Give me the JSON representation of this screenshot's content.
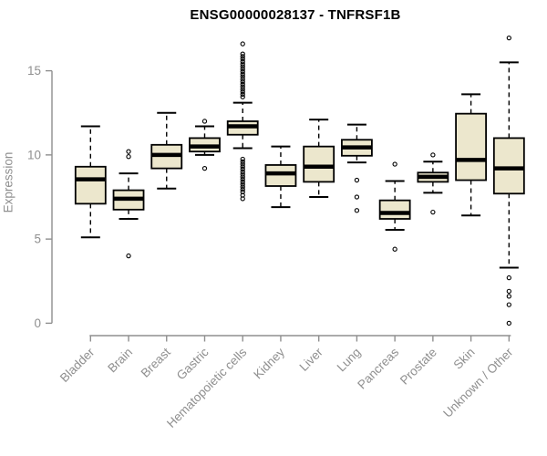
{
  "chart_data": {
    "type": "boxplot",
    "title": "ENSG00000028137 - TNFRSF1B",
    "ylabel": "Expression",
    "xlabel": "",
    "ylim": [
      0,
      15
    ],
    "yticks": [
      0,
      5,
      10,
      15
    ],
    "grid": false,
    "legend": "none",
    "colors": {
      "box_fill": "#ECE7CD",
      "box_stroke": "#000000",
      "axis": "#8f8f8f",
      "tick_label": "#8f8f8f",
      "title": "#000000"
    },
    "categories": [
      "Bladder",
      "Brain",
      "Breast",
      "Gastric",
      "Hematopoietic cells",
      "Kidney",
      "Liver",
      "Lung",
      "Pancreas",
      "Prostate",
      "Skin",
      "Unknown / Other"
    ],
    "series": [
      {
        "name": "Bladder",
        "whisker_low": 5.1,
        "q1": 7.1,
        "median": 8.55,
        "q3": 9.3,
        "whisker_high": 11.7,
        "outliers": []
      },
      {
        "name": "Brain",
        "whisker_low": 6.2,
        "q1": 6.75,
        "median": 7.4,
        "q3": 7.9,
        "whisker_high": 8.9,
        "outliers": [
          10.2,
          9.9,
          4.0
        ]
      },
      {
        "name": "Breast",
        "whisker_low": 8.0,
        "q1": 9.2,
        "median": 10.0,
        "q3": 10.6,
        "whisker_high": 12.5,
        "outliers": []
      },
      {
        "name": "Gastric",
        "whisker_low": 10.0,
        "q1": 10.2,
        "median": 10.5,
        "q3": 11.0,
        "whisker_high": 11.7,
        "outliers": [
          12.0,
          9.2
        ]
      },
      {
        "name": "Hematopoietic cells",
        "whisker_low": 10.4,
        "q1": 11.2,
        "median": 11.7,
        "q3": 12.0,
        "whisker_high": 13.1,
        "outliers": [
          16.6,
          16.0,
          15.85,
          15.7,
          15.55,
          15.4,
          15.25,
          15.1,
          14.95,
          14.8,
          14.65,
          14.5,
          14.35,
          14.2,
          14.05,
          13.9,
          13.75,
          13.6,
          13.45,
          9.75,
          9.6,
          9.45,
          9.3,
          9.15,
          9.0,
          8.85,
          8.7,
          8.55,
          8.4,
          8.25,
          8.1,
          7.95,
          7.8,
          7.6,
          7.4
        ]
      },
      {
        "name": "Kidney",
        "whisker_low": 6.9,
        "q1": 8.15,
        "median": 8.9,
        "q3": 9.4,
        "whisker_high": 10.5,
        "outliers": []
      },
      {
        "name": "Liver",
        "whisker_low": 7.5,
        "q1": 8.4,
        "median": 9.3,
        "q3": 10.5,
        "whisker_high": 12.1,
        "outliers": []
      },
      {
        "name": "Lung",
        "whisker_low": 9.55,
        "q1": 9.95,
        "median": 10.45,
        "q3": 10.9,
        "whisker_high": 11.8,
        "outliers": [
          8.5,
          7.5,
          6.7
        ]
      },
      {
        "name": "Pancreas",
        "whisker_low": 5.55,
        "q1": 6.2,
        "median": 6.55,
        "q3": 7.3,
        "whisker_high": 8.45,
        "outliers": [
          9.45,
          4.4
        ]
      },
      {
        "name": "Prostate",
        "whisker_low": 7.75,
        "q1": 8.4,
        "median": 8.7,
        "q3": 8.95,
        "whisker_high": 9.6,
        "outliers": [
          10.0,
          6.6
        ]
      },
      {
        "name": "Skin",
        "whisker_low": 6.4,
        "q1": 8.5,
        "median": 9.7,
        "q3": 12.45,
        "whisker_high": 13.6,
        "outliers": []
      },
      {
        "name": "Unknown / Other",
        "whisker_low": 3.3,
        "q1": 7.7,
        "median": 9.2,
        "q3": 11.0,
        "whisker_high": 15.5,
        "outliers": [
          16.95,
          2.7,
          1.9,
          1.6,
          1.1,
          0.0
        ]
      }
    ]
  }
}
